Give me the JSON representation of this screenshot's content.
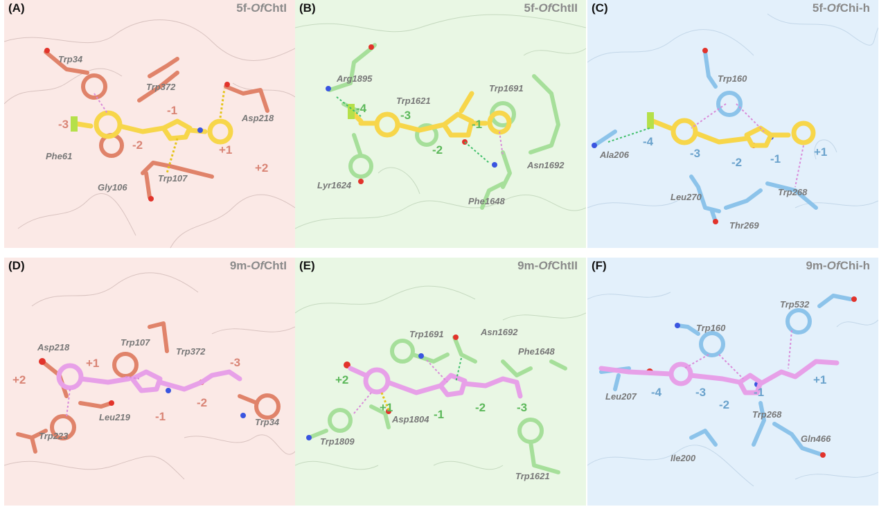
{
  "colors": {
    "red_panel_bg": "#fbe9e6",
    "green_panel_bg": "#e9f7e4",
    "blue_panel_bg": "#e3f0fb",
    "red_residue": "#e0836a",
    "green_residue": "#a6df9a",
    "blue_residue": "#8cc3ea",
    "ligand_yellow": "#f7d64a",
    "ligand_pink": "#e7a0e8",
    "oxygen": "#e2332b",
    "nitrogen": "#3a55e0",
    "interaction_pink": "#d98ad9",
    "interaction_green": "#3fbf6a",
    "interaction_yellow": "#e5c41b"
  },
  "panels": [
    {
      "id": "A",
      "label": "(A)",
      "ligand": "5f-",
      "enzyme_italic": "Of",
      "enzyme_rest": "ChtI",
      "theme": "red",
      "residues": [
        {
          "name": "Trp34",
          "x": 78,
          "y": 90
        },
        {
          "name": "Trp372",
          "x": 205,
          "y": 130
        },
        {
          "name": "Asp218",
          "x": 343,
          "y": 175
        },
        {
          "name": "Phe61",
          "x": 60,
          "y": 230
        },
        {
          "name": "Gly106",
          "x": 135,
          "y": 275
        },
        {
          "name": "Trp107",
          "x": 222,
          "y": 262
        }
      ],
      "subsites": [
        {
          "text": "-3",
          "x": 78,
          "y": 185
        },
        {
          "text": "-2",
          "x": 185,
          "y": 215
        },
        {
          "text": "-1",
          "x": 235,
          "y": 165
        },
        {
          "text": "+1",
          "x": 310,
          "y": 222
        },
        {
          "text": "+2",
          "x": 362,
          "y": 248
        }
      ]
    },
    {
      "id": "B",
      "label": "(B)",
      "ligand": "5f-",
      "enzyme_italic": "Of",
      "enzyme_rest": "ChtII",
      "theme": "green",
      "residues": [
        {
          "name": "Arg1895",
          "x": 60,
          "y": 118
        },
        {
          "name": "Trp1621",
          "x": 146,
          "y": 150
        },
        {
          "name": "Trp1691",
          "x": 280,
          "y": 132
        },
        {
          "name": "Lyr1624",
          "x": 32,
          "y": 272
        },
        {
          "name": "Asn1692",
          "x": 335,
          "y": 243
        },
        {
          "name": "Phe1648",
          "x": 250,
          "y": 295
        }
      ],
      "subsites": [
        {
          "text": "-4",
          "x": 88,
          "y": 162
        },
        {
          "text": "-3",
          "x": 152,
          "y": 172
        },
        {
          "text": "-2",
          "x": 198,
          "y": 222
        },
        {
          "text": "-1",
          "x": 255,
          "y": 185
        }
      ]
    },
    {
      "id": "C",
      "label": "(C)",
      "ligand": "5f-",
      "enzyme_italic": "Of",
      "enzyme_rest": "Chi-h",
      "theme": "blue",
      "residues": [
        {
          "name": "Trp160",
          "x": 188,
          "y": 118
        },
        {
          "name": "Ala206",
          "x": 18,
          "y": 228
        },
        {
          "name": "Leu270",
          "x": 120,
          "y": 289
        },
        {
          "name": "Trp268",
          "x": 275,
          "y": 282
        },
        {
          "name": "Thr269",
          "x": 205,
          "y": 330
        }
      ],
      "subsites": [
        {
          "text": "-4",
          "x": 80,
          "y": 210
        },
        {
          "text": "-3",
          "x": 148,
          "y": 227
        },
        {
          "text": "-2",
          "x": 208,
          "y": 240
        },
        {
          "text": "-1",
          "x": 264,
          "y": 235
        },
        {
          "text": "+1",
          "x": 327,
          "y": 225
        }
      ]
    },
    {
      "id": "D",
      "label": "(D)",
      "ligand": "9m-",
      "enzyme_italic": "Of",
      "enzyme_rest": "ChtI",
      "theme": "red",
      "residues": [
        {
          "name": "Asp218",
          "x": 48,
          "y": 134
        },
        {
          "name": "Trp107",
          "x": 168,
          "y": 127
        },
        {
          "name": "Trp372",
          "x": 248,
          "y": 140
        },
        {
          "name": "Leu219",
          "x": 137,
          "y": 235
        },
        {
          "name": "Trp223",
          "x": 50,
          "y": 262
        },
        {
          "name": "Trp34",
          "x": 362,
          "y": 242
        }
      ],
      "subsites": [
        {
          "text": "+2",
          "x": 12,
          "y": 182
        },
        {
          "text": "+1",
          "x": 118,
          "y": 158
        },
        {
          "text": "-1",
          "x": 218,
          "y": 235
        },
        {
          "text": "-2",
          "x": 278,
          "y": 215
        },
        {
          "text": "-3",
          "x": 326,
          "y": 157
        }
      ]
    },
    {
      "id": "E",
      "label": "(E)",
      "ligand": "9m-",
      "enzyme_italic": "Of",
      "enzyme_rest": "ChtII",
      "theme": "green",
      "residues": [
        {
          "name": "Trp1691",
          "x": 165,
          "y": 115
        },
        {
          "name": "Asn1692",
          "x": 268,
          "y": 112
        },
        {
          "name": "Phe1648",
          "x": 322,
          "y": 140
        },
        {
          "name": "Asp1804",
          "x": 140,
          "y": 238
        },
        {
          "name": "Trp1809",
          "x": 36,
          "y": 270
        },
        {
          "name": "Trp1621",
          "x": 318,
          "y": 320
        }
      ],
      "subsites": [
        {
          "text": "+2",
          "x": 58,
          "y": 182
        },
        {
          "text": "+1",
          "x": 122,
          "y": 222
        },
        {
          "text": "-1",
          "x": 200,
          "y": 232
        },
        {
          "text": "-2",
          "x": 260,
          "y": 222
        },
        {
          "text": "-3",
          "x": 320,
          "y": 222
        }
      ]
    },
    {
      "id": "F",
      "label": "(F)",
      "ligand": "9m-",
      "enzyme_italic": "Of",
      "enzyme_rest": "Chi-h",
      "theme": "blue",
      "residues": [
        {
          "name": "Trp532",
          "x": 278,
          "y": 72
        },
        {
          "name": "Trp160",
          "x": 157,
          "y": 106
        },
        {
          "name": "Leu207",
          "x": 26,
          "y": 205
        },
        {
          "name": "Trp268",
          "x": 238,
          "y": 231
        },
        {
          "name": "Gln466",
          "x": 308,
          "y": 266
        },
        {
          "name": "Ile200",
          "x": 120,
          "y": 294
        }
      ],
      "subsites": [
        {
          "text": "-4",
          "x": 92,
          "y": 200
        },
        {
          "text": "-3",
          "x": 156,
          "y": 200
        },
        {
          "text": "-2",
          "x": 190,
          "y": 218
        },
        {
          "text": "-1",
          "x": 240,
          "y": 200
        },
        {
          "text": "+1",
          "x": 326,
          "y": 182
        }
      ]
    }
  ]
}
